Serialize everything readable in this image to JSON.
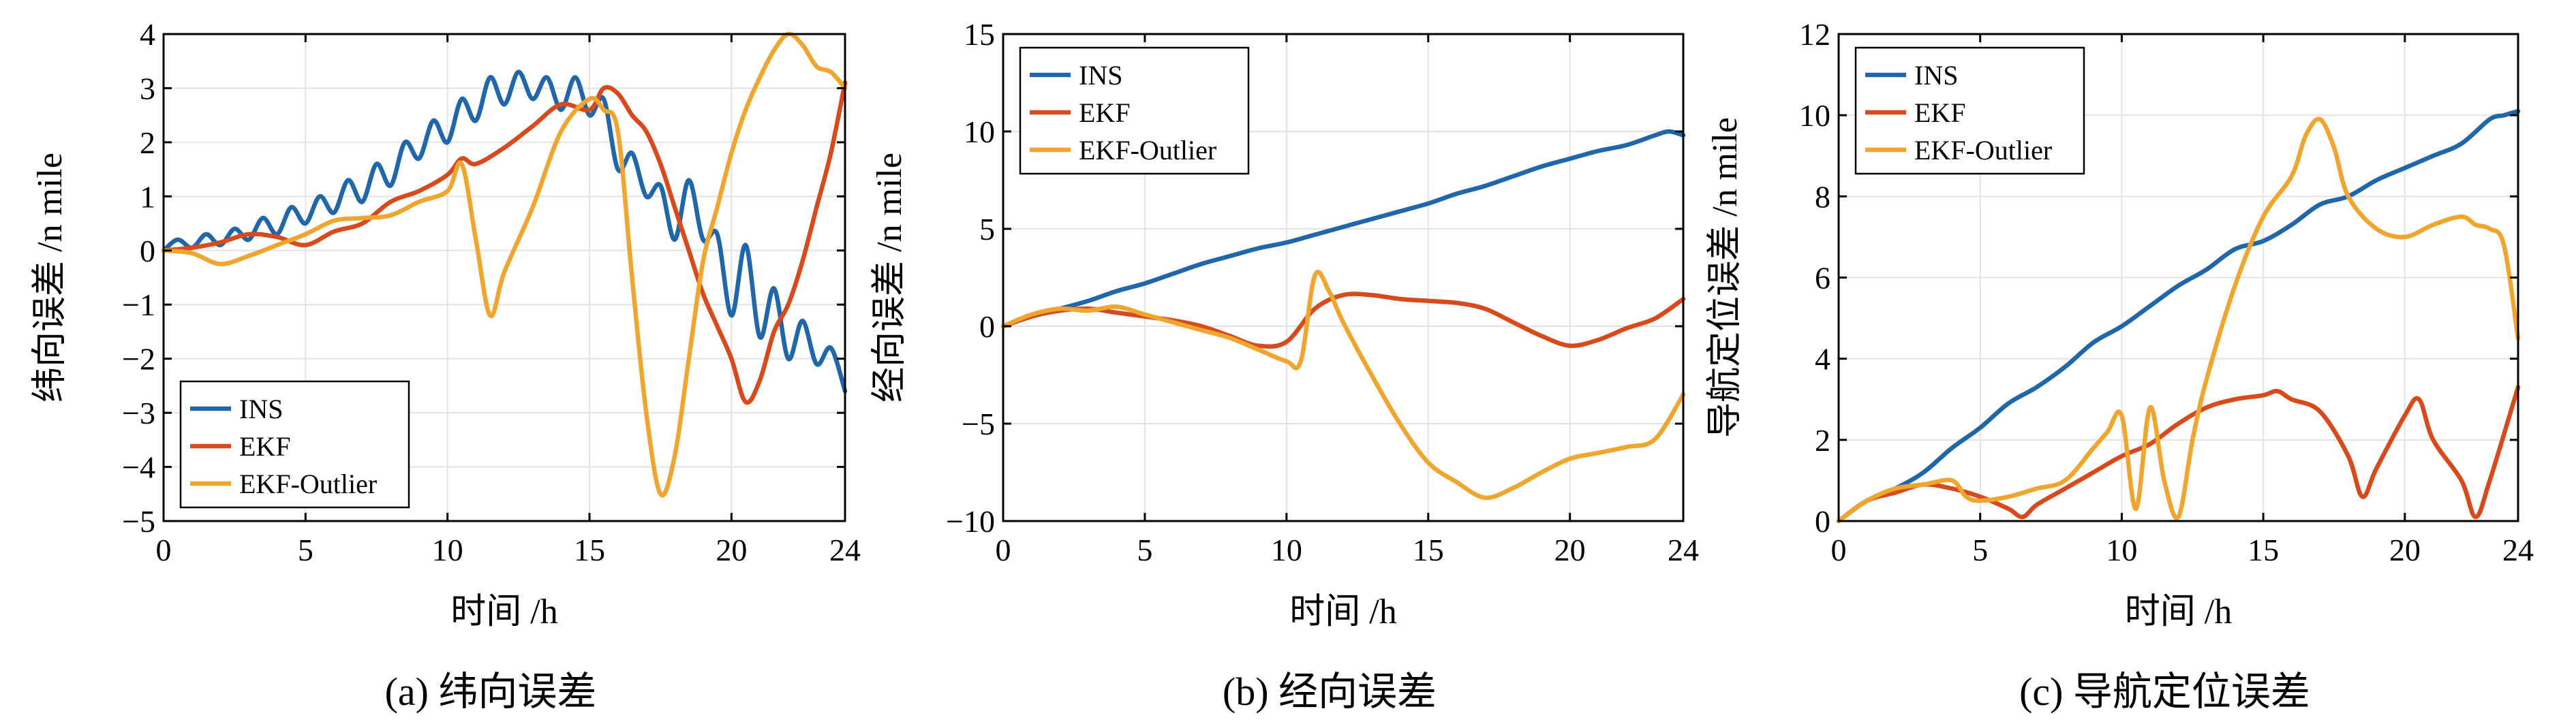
{
  "colors": {
    "INS": "#1f66aa",
    "EKF": "#d8491c",
    "EKF-Outlier": "#f0a52e"
  },
  "chart_data": [
    {
      "type": "line",
      "caption": "(a) 纬向误差",
      "xlabel": "时间 /h",
      "ylabel": "纬向误差 /n mile",
      "xlim": [
        0,
        24
      ],
      "ylim": [
        -5,
        4
      ],
      "xticks": [
        0,
        5,
        10,
        15,
        20,
        24
      ],
      "yticks": [
        -5,
        -4,
        -3,
        -2,
        -1,
        0,
        1,
        2,
        3,
        4
      ],
      "legend_position": "bottom-left",
      "series": [
        {
          "name": "INS",
          "x": [
            0,
            0.5,
            1,
            1.5,
            2,
            2.5,
            3,
            3.5,
            4,
            4.5,
            5,
            5.5,
            6,
            6.5,
            7,
            7.5,
            8,
            8.5,
            9,
            9.5,
            10,
            10.5,
            11,
            11.5,
            12,
            12.5,
            13,
            13.5,
            14,
            14.5,
            15,
            15.5,
            16,
            16.5,
            17,
            17.5,
            18,
            18.5,
            19,
            19.5,
            20,
            20.5,
            21,
            21.5,
            22,
            22.5,
            23,
            23.5,
            24
          ],
          "values": [
            0,
            0.2,
            0.05,
            0.3,
            0.1,
            0.4,
            0.2,
            0.6,
            0.3,
            0.8,
            0.5,
            1.0,
            0.7,
            1.3,
            0.9,
            1.6,
            1.2,
            2.0,
            1.7,
            2.4,
            2.0,
            2.8,
            2.4,
            3.2,
            2.7,
            3.3,
            2.8,
            3.2,
            2.6,
            3.2,
            2.5,
            2.8,
            1.5,
            1.8,
            1.0,
            1.2,
            0.2,
            1.3,
            0.2,
            0.3,
            -1.2,
            0.1,
            -1.6,
            -0.7,
            -2.0,
            -1.3,
            -2.1,
            -1.8,
            -2.6
          ]
        },
        {
          "name": "EKF",
          "x": [
            0,
            1,
            2,
            3,
            4,
            5,
            6,
            7,
            8,
            9,
            10,
            10.5,
            11,
            12,
            13,
            14,
            15,
            15.5,
            16,
            16.5,
            17,
            17.5,
            18,
            18.5,
            19,
            19.5,
            20,
            20.5,
            21,
            21.5,
            22,
            22.5,
            23,
            23.5,
            24
          ],
          "values": [
            0,
            0.05,
            0.15,
            0.3,
            0.25,
            0.1,
            0.35,
            0.5,
            0.9,
            1.1,
            1.4,
            1.7,
            1.6,
            1.9,
            2.3,
            2.7,
            2.6,
            3.0,
            2.9,
            2.5,
            2.2,
            1.6,
            0.8,
            0.0,
            -0.8,
            -1.4,
            -2.0,
            -2.8,
            -2.4,
            -1.5,
            -1.0,
            -0.2,
            0.8,
            1.8,
            3.1
          ]
        },
        {
          "name": "EKF-Outlier",
          "x": [
            0,
            1,
            2,
            3,
            4,
            5,
            6,
            7,
            8,
            9,
            10,
            10.5,
            11,
            11.5,
            12,
            13,
            14,
            15,
            15.5,
            16,
            16.5,
            17,
            17.5,
            18,
            18.5,
            19,
            19.5,
            20,
            20.5,
            21,
            21.5,
            22,
            22.5,
            23,
            23.5,
            24
          ],
          "values": [
            0,
            -0.05,
            -0.25,
            -0.1,
            0.1,
            0.3,
            0.55,
            0.6,
            0.65,
            0.9,
            1.1,
            1.6,
            0.2,
            -1.2,
            -0.4,
            0.8,
            2.2,
            2.8,
            2.6,
            2.2,
            -0.5,
            -3.0,
            -4.5,
            -3.8,
            -2.0,
            -0.2,
            0.8,
            1.8,
            2.6,
            3.2,
            3.7,
            4.0,
            3.8,
            3.4,
            3.3,
            3.0
          ]
        }
      ]
    },
    {
      "type": "line",
      "caption": "(b) 经向误差",
      "xlabel": "时间 /h",
      "ylabel": "经向误差 /n mile",
      "xlim": [
        0,
        24
      ],
      "ylim": [
        -10,
        15
      ],
      "xticks": [
        0,
        5,
        10,
        15,
        20,
        24
      ],
      "yticks": [
        -10,
        -5,
        0,
        5,
        10,
        15
      ],
      "legend_position": "top-left",
      "series": [
        {
          "name": "INS",
          "x": [
            0,
            1,
            2,
            3,
            4,
            5,
            6,
            7,
            8,
            9,
            10,
            11,
            12,
            13,
            14,
            15,
            16,
            17,
            18,
            19,
            20,
            21,
            22,
            23,
            23.5,
            24
          ],
          "values": [
            0,
            0.5,
            0.9,
            1.3,
            1.8,
            2.2,
            2.7,
            3.2,
            3.6,
            4.0,
            4.3,
            4.7,
            5.1,
            5.5,
            5.9,
            6.3,
            6.8,
            7.2,
            7.7,
            8.2,
            8.6,
            9.0,
            9.3,
            9.8,
            10.0,
            9.8
          ]
        },
        {
          "name": "EKF",
          "x": [
            0,
            1,
            2,
            3,
            4,
            5,
            6,
            7,
            8,
            9,
            10,
            11,
            12,
            13,
            14,
            15,
            16,
            17,
            18,
            19,
            20,
            21,
            22,
            23,
            24
          ],
          "values": [
            0,
            0.5,
            0.8,
            0.9,
            0.7,
            0.5,
            0.3,
            0.0,
            -0.5,
            -1.0,
            -0.8,
            0.9,
            1.6,
            1.6,
            1.4,
            1.3,
            1.2,
            0.9,
            0.2,
            -0.5,
            -1.0,
            -0.7,
            -0.1,
            0.4,
            1.4
          ]
        },
        {
          "name": "EKF-Outlier",
          "x": [
            0,
            1,
            2,
            3,
            4,
            5,
            6,
            7,
            8,
            9,
            10,
            10.5,
            11,
            11.5,
            12,
            13,
            14,
            15,
            16,
            17,
            18,
            19,
            20,
            21,
            22,
            23,
            24
          ],
          "values": [
            0,
            0.6,
            0.9,
            0.8,
            1.0,
            0.6,
            0.2,
            -0.2,
            -0.6,
            -1.2,
            -1.8,
            -1.8,
            2.6,
            1.8,
            0.2,
            -2.5,
            -5.0,
            -7.0,
            -8.0,
            -8.8,
            -8.3,
            -7.5,
            -6.8,
            -6.5,
            -6.2,
            -5.8,
            -3.5
          ]
        }
      ]
    },
    {
      "type": "line",
      "caption": "(c) 导航定位误差",
      "xlabel": "时间 /h",
      "ylabel": "导航定位误差 /n mile",
      "xlim": [
        0,
        24
      ],
      "ylim": [
        0,
        12
      ],
      "xticks": [
        0,
        5,
        10,
        15,
        20,
        24
      ],
      "yticks": [
        0,
        2,
        4,
        6,
        8,
        10,
        12
      ],
      "legend_position": "top-left",
      "series": [
        {
          "name": "INS",
          "x": [
            0,
            1,
            2,
            3,
            4,
            5,
            6,
            7,
            8,
            9,
            10,
            11,
            12,
            13,
            14,
            15,
            16,
            17,
            18,
            19,
            20,
            21,
            22,
            23,
            23.5,
            24
          ],
          "values": [
            0,
            0.5,
            0.8,
            1.2,
            1.8,
            2.3,
            2.9,
            3.3,
            3.8,
            4.4,
            4.8,
            5.3,
            5.8,
            6.2,
            6.7,
            6.9,
            7.3,
            7.8,
            8.0,
            8.4,
            8.7,
            9.0,
            9.3,
            9.9,
            10.0,
            10.1
          ]
        },
        {
          "name": "EKF",
          "x": [
            0,
            1,
            2,
            3,
            4,
            5,
            6,
            6.5,
            7,
            8,
            9,
            10,
            11,
            12,
            13,
            14,
            15,
            15.5,
            16,
            17,
            18,
            18.5,
            19,
            20,
            20.5,
            21,
            22,
            22.5,
            23,
            24
          ],
          "values": [
            0,
            0.5,
            0.7,
            0.9,
            0.8,
            0.6,
            0.3,
            0.1,
            0.4,
            0.8,
            1.2,
            1.6,
            1.9,
            2.4,
            2.8,
            3.0,
            3.1,
            3.2,
            3.0,
            2.7,
            1.6,
            0.6,
            1.3,
            2.6,
            3.0,
            2.0,
            1.0,
            0.1,
            1.0,
            3.3
          ]
        },
        {
          "name": "EKF-Outlier",
          "x": [
            0,
            1,
            2,
            3,
            4,
            4.5,
            5,
            6,
            7,
            8,
            9,
            9.5,
            10,
            10.5,
            11,
            11.5,
            12,
            12.5,
            13,
            14,
            15,
            16,
            16.5,
            17,
            17.5,
            18,
            19,
            20,
            21,
            22,
            22.5,
            23,
            23.5,
            24
          ],
          "values": [
            0,
            0.5,
            0.8,
            0.9,
            1.0,
            0.6,
            0.5,
            0.6,
            0.8,
            1.0,
            1.8,
            2.2,
            2.6,
            0.3,
            2.8,
            1.0,
            0.1,
            2.0,
            3.5,
            5.8,
            7.5,
            8.5,
            9.5,
            9.9,
            9.2,
            8.0,
            7.2,
            7.0,
            7.3,
            7.5,
            7.3,
            7.2,
            6.8,
            4.5
          ]
        }
      ]
    }
  ]
}
